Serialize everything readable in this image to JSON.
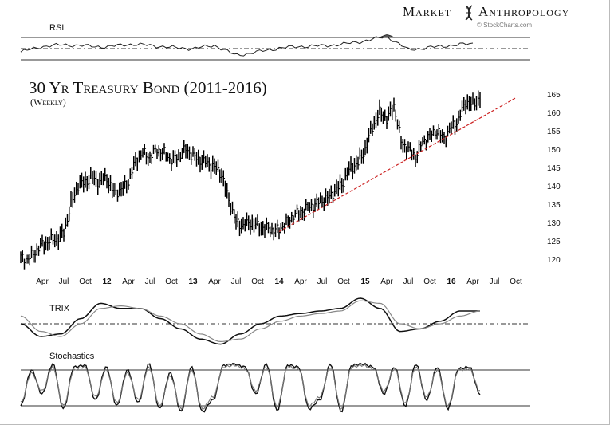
{
  "header": {
    "brand_part1": "Market",
    "brand_part2": "Anthropology",
    "credit": "© StockCharts.com",
    "logo_icon": "dna-helix-icon"
  },
  "chart_data": [
    {
      "type": "line",
      "panel": "rsi",
      "title": "RSI",
      "reference_levels": [
        70,
        50,
        30
      ],
      "x": [
        "2011-01",
        "2011-04",
        "2011-07",
        "2011-10",
        "2012-01",
        "2012-04",
        "2012-07",
        "2012-10",
        "2013-01",
        "2013-04",
        "2013-07",
        "2013-10",
        "2014-01",
        "2014-04",
        "2014-07",
        "2014-10",
        "2015-01",
        "2015-04",
        "2015-07",
        "2015-10",
        "2016-01",
        "2016-04"
      ],
      "values": [
        44,
        54,
        57,
        55,
        53,
        58,
        56,
        52,
        50,
        56,
        38,
        44,
        51,
        54,
        55,
        58,
        64,
        72,
        48,
        52,
        56,
        59
      ]
    },
    {
      "type": "bar",
      "panel": "price",
      "title": "30 Yr Treasury Bond (2011-2016)",
      "subtitle": "(Weekly)",
      "y_ticks": [
        120,
        125,
        130,
        135,
        140,
        145,
        150,
        155,
        160,
        165
      ],
      "ylim": [
        118,
        168
      ],
      "x_ticks": [
        "Apr",
        "Jul",
        "Oct",
        "12",
        "Apr",
        "Jul",
        "Oct",
        "13",
        "Apr",
        "Jul",
        "Oct",
        "14",
        "Apr",
        "Jul",
        "Oct",
        "15",
        "Apr",
        "Jul",
        "Oct",
        "16",
        "Apr",
        "Jul",
        "Oct"
      ],
      "x": [
        "2011-01",
        "2011-02",
        "2011-03",
        "2011-04",
        "2011-05",
        "2011-06",
        "2011-07",
        "2011-08",
        "2011-09",
        "2011-10",
        "2011-11",
        "2011-12",
        "2012-01",
        "2012-02",
        "2012-03",
        "2012-04",
        "2012-05",
        "2012-06",
        "2012-07",
        "2012-08",
        "2012-09",
        "2012-10",
        "2012-11",
        "2012-12",
        "2013-01",
        "2013-02",
        "2013-03",
        "2013-04",
        "2013-05",
        "2013-06",
        "2013-07",
        "2013-08",
        "2013-09",
        "2013-10",
        "2013-11",
        "2013-12",
        "2014-01",
        "2014-02",
        "2014-03",
        "2014-04",
        "2014-05",
        "2014-06",
        "2014-07",
        "2014-08",
        "2014-09",
        "2014-10",
        "2014-11",
        "2014-12",
        "2015-01",
        "2015-02",
        "2015-03",
        "2015-04",
        "2015-05",
        "2015-06",
        "2015-07",
        "2015-08",
        "2015-09",
        "2015-10",
        "2015-11",
        "2015-12",
        "2016-01",
        "2016-02",
        "2016-03",
        "2016-04",
        "2016-05"
      ],
      "close": [
        120.5,
        120,
        122,
        124,
        125,
        125.5,
        127,
        135,
        140,
        141,
        142,
        141,
        142,
        138,
        139,
        141,
        147,
        149,
        148,
        150,
        149,
        147,
        148,
        150,
        148,
        147,
        146,
        145,
        143,
        136,
        130,
        129,
        130,
        129,
        128.5,
        128,
        128,
        130,
        132,
        133,
        134,
        135,
        136,
        137,
        139,
        141,
        145,
        146,
        150,
        156,
        160,
        158,
        162,
        152,
        150,
        148,
        152,
        154,
        155,
        153,
        156,
        158,
        163,
        162,
        164
      ],
      "trendline": {
        "from": [
          "2014-01",
          127.5
        ],
        "to": [
          "2016-10",
          164
        ]
      },
      "trendline_color": "#cc2222"
    },
    {
      "type": "line",
      "panel": "trix",
      "title": "TRIX",
      "series": [
        {
          "values": [
            0.0,
            -0.5,
            -0.4,
            0.2,
            0.8,
            0.6,
            0.6,
            0.2,
            -0.2,
            -0.6,
            -0.8,
            -0.4,
            0.0,
            0.3,
            0.4,
            0.5,
            0.6,
            1.0,
            0.6,
            -0.3,
            -0.2,
            0.1,
            0.5,
            0.5
          ]
        },
        {
          "values": [
            0.3,
            -0.3,
            -0.5,
            0.0,
            0.6,
            0.7,
            0.6,
            0.3,
            0.0,
            -0.4,
            -0.7,
            -0.6,
            -0.2,
            0.1,
            0.3,
            0.4,
            0.5,
            0.9,
            0.8,
            0.0,
            -0.2,
            0.0,
            0.3,
            0.5
          ]
        }
      ]
    },
    {
      "type": "line",
      "panel": "stochastics",
      "title": "Stochastics",
      "reference_levels": [
        80,
        50,
        20
      ],
      "series": [
        {
          "values": [
            20,
            80,
            40,
            90,
            15,
            85,
            88,
            30,
            85,
            20,
            80,
            25,
            90,
            15,
            75,
            10,
            85,
            10,
            30,
            88,
            90,
            85,
            40,
            90,
            12,
            88,
            85,
            15,
            30,
            90,
            10,
            88,
            90,
            85,
            40,
            85,
            20,
            90,
            30,
            85,
            15,
            82,
            85,
            40
          ]
        },
        {
          "values": [
            25,
            75,
            45,
            85,
            20,
            80,
            85,
            35,
            80,
            25,
            75,
            30,
            85,
            20,
            70,
            15,
            80,
            15,
            35,
            85,
            88,
            82,
            45,
            85,
            18,
            85,
            82,
            20,
            35,
            85,
            15,
            85,
            88,
            82,
            45,
            82,
            25,
            85,
            35,
            80,
            20,
            80,
            82,
            45
          ]
        }
      ]
    }
  ]
}
